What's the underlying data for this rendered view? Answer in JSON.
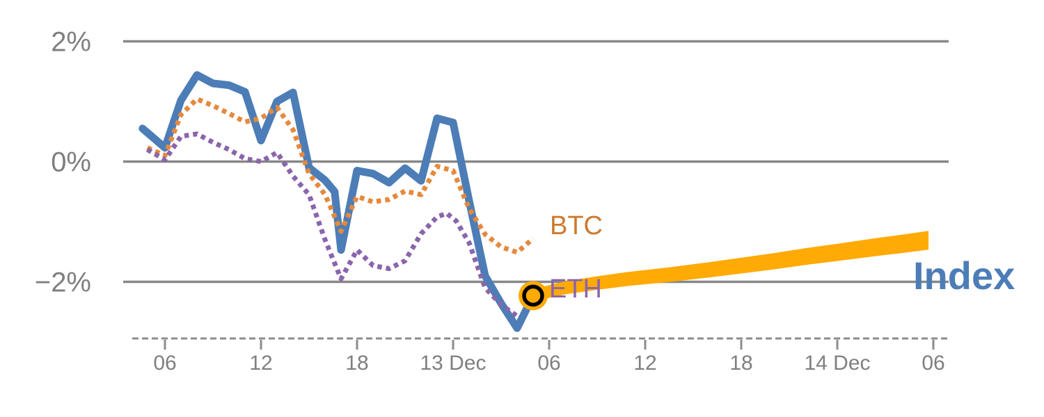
{
  "chart_data": {
    "type": "line",
    "title": "",
    "x_axis": {
      "unit": "hours since 12 Dec 00:00",
      "ticks": [
        {
          "hour": 6,
          "label": "06"
        },
        {
          "hour": 12,
          "label": "12"
        },
        {
          "hour": 18,
          "label": "18"
        },
        {
          "hour": 24,
          "label": "13 Dec"
        },
        {
          "hour": 30,
          "label": "06"
        },
        {
          "hour": 36,
          "label": "12"
        },
        {
          "hour": 42,
          "label": "18"
        },
        {
          "hour": 48,
          "label": "14 Dec"
        },
        {
          "hour": 54,
          "label": "06"
        }
      ]
    },
    "y_axis": {
      "unit": "%",
      "ylim": [
        -3.1,
        2.3
      ],
      "ticks": [
        {
          "value": 2,
          "label": "2%"
        },
        {
          "value": 0,
          "label": "0%"
        },
        {
          "value": -2,
          "label": "−2%"
        }
      ]
    },
    "series": [
      {
        "name": "Index",
        "style": "solid",
        "color": "#4c7db7",
        "points": [
          [
            4.6,
            0.55
          ],
          [
            6,
            0.23
          ],
          [
            7,
            1.02
          ],
          [
            8,
            1.44
          ],
          [
            9,
            1.3
          ],
          [
            10,
            1.27
          ],
          [
            11,
            1.16
          ],
          [
            12,
            0.35
          ],
          [
            13,
            1.0
          ],
          [
            14,
            1.15
          ],
          [
            15,
            -0.1
          ],
          [
            16,
            -0.31
          ],
          [
            16.6,
            -0.5
          ],
          [
            17,
            -1.47
          ],
          [
            18,
            -0.15
          ],
          [
            19,
            -0.2
          ],
          [
            20,
            -0.35
          ],
          [
            21,
            -0.11
          ],
          [
            22,
            -0.32
          ],
          [
            23,
            0.72
          ],
          [
            24,
            0.65
          ],
          [
            25,
            -0.65
          ],
          [
            26,
            -1.9
          ],
          [
            27,
            -2.36
          ],
          [
            28,
            -2.77
          ],
          [
            29,
            -2.23
          ]
        ]
      },
      {
        "name": "BTC",
        "style": "dotted",
        "color": "#e6893c",
        "points": [
          [
            4.9,
            0.23
          ],
          [
            6,
            0.1
          ],
          [
            7,
            0.78
          ],
          [
            8,
            1.04
          ],
          [
            9,
            0.93
          ],
          [
            10,
            0.8
          ],
          [
            11,
            0.66
          ],
          [
            12,
            0.72
          ],
          [
            13,
            0.9
          ],
          [
            14,
            0.53
          ],
          [
            15,
            -0.2
          ],
          [
            16,
            -0.55
          ],
          [
            17,
            -1.16
          ],
          [
            18,
            -0.58
          ],
          [
            19,
            -0.67
          ],
          [
            20,
            -0.63
          ],
          [
            21,
            -0.49
          ],
          [
            22,
            -0.55
          ],
          [
            23,
            -0.08
          ],
          [
            24,
            -0.15
          ],
          [
            25,
            -0.78
          ],
          [
            26,
            -1.21
          ],
          [
            27,
            -1.42
          ],
          [
            28,
            -1.51
          ],
          [
            29,
            -1.28
          ]
        ]
      },
      {
        "name": "ETH",
        "style": "dotted",
        "color": "#8a65ab",
        "points": [
          [
            4.9,
            0.2
          ],
          [
            6,
            0.03
          ],
          [
            7,
            0.42
          ],
          [
            8,
            0.46
          ],
          [
            9,
            0.32
          ],
          [
            10,
            0.2
          ],
          [
            11,
            0.05
          ],
          [
            12,
            0.0
          ],
          [
            13,
            0.15
          ],
          [
            14,
            -0.24
          ],
          [
            15,
            -0.55
          ],
          [
            16,
            -1.3
          ],
          [
            17,
            -1.95
          ],
          [
            18,
            -1.47
          ],
          [
            19,
            -1.73
          ],
          [
            20,
            -1.78
          ],
          [
            21,
            -1.65
          ],
          [
            22,
            -1.2
          ],
          [
            23,
            -0.92
          ],
          [
            23.6,
            -0.86
          ],
          [
            24.2,
            -0.99
          ],
          [
            25,
            -1.35
          ],
          [
            26,
            -2.1
          ],
          [
            27,
            -2.38
          ],
          [
            28,
            -2.57
          ]
        ]
      },
      {
        "name": "Index forecast",
        "style": "taper",
        "color": "#ffaa05",
        "points": [
          [
            29,
            -2.23
          ],
          [
            30,
            -2.16
          ],
          [
            31,
            -2.1
          ],
          [
            33,
            -2.02
          ],
          [
            35,
            -1.95
          ],
          [
            37.5,
            -1.88
          ],
          [
            40,
            -1.8
          ],
          [
            42,
            -1.73
          ],
          [
            44,
            -1.66
          ],
          [
            46,
            -1.58
          ],
          [
            48,
            -1.51
          ],
          [
            50.5,
            -1.42
          ],
          [
            52,
            -1.37
          ],
          [
            53.7,
            -1.31
          ]
        ]
      }
    ],
    "forecast_marker": {
      "hour": 29,
      "value": -2.23,
      "shape": "ringed-circle"
    },
    "labels": {
      "btc": "BTC",
      "eth": "ETH",
      "index": "Index"
    },
    "colors": {
      "index_line": "#4c7db7",
      "index_label": "#4c7db7",
      "btc_dots": "#e6893c",
      "btc_label": "#cc7a2e",
      "eth_dots": "#8a65ab",
      "eth_label": "#8a65ab",
      "forecast_line": "#ffaa05",
      "marker_ring": "#000000",
      "grid": "#878787",
      "axis": "#8c8c8c",
      "tick_text": "#7f7f7f"
    },
    "grid": "horizontal-only",
    "legend_position": "inline-end-labels"
  }
}
